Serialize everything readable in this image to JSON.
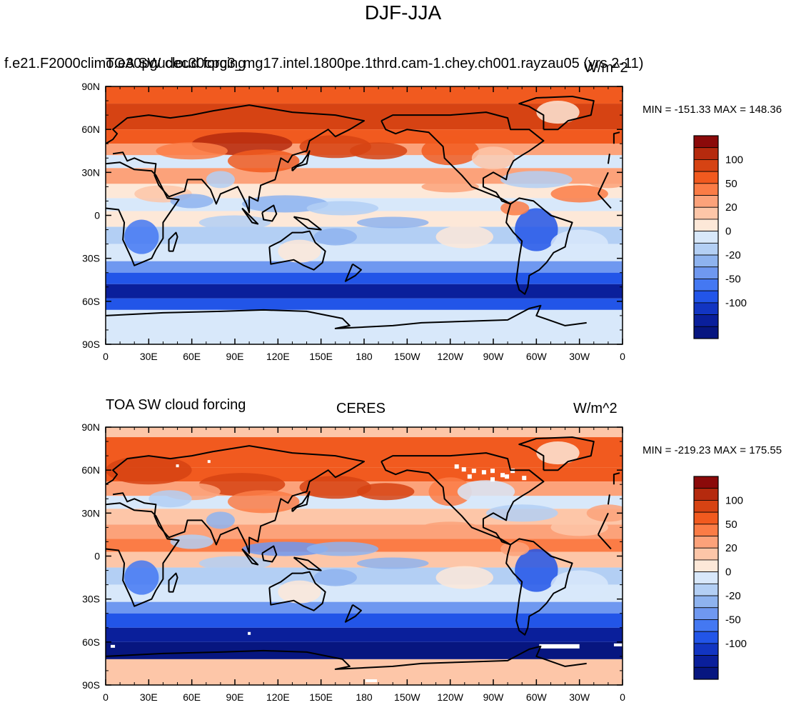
{
  "figure": {
    "title": "DJF-JJA"
  },
  "panels": [
    {
      "left_string": "f.e21.F2000climo.e30pgudec30cpg3_mg17.intel.1800pe.1thrd.cam-1.chey.ch001.rayzau05 (yrs 2-11)",
      "left_overlay": "TOA SW cloud forcing",
      "center_string": "",
      "right_string": "W/m^2",
      "stats": "MIN = -151.33 MAX = 148.36"
    },
    {
      "left_string": "TOA SW cloud forcing",
      "center_string": "CERES",
      "right_string": "W/m^2",
      "stats": "MIN = -219.23 MAX = 175.55"
    }
  ],
  "axes": {
    "lat_labels": [
      "90N",
      "60N",
      "30N",
      "0",
      "30S",
      "60S",
      "90S"
    ],
    "lon_labels": [
      "0",
      "30E",
      "60E",
      "90E",
      "120E",
      "150E",
      "180",
      "150W",
      "120W",
      "90W",
      "60W",
      "30W",
      "0"
    ]
  },
  "colorbar": {
    "labels": [
      "100",
      "50",
      "20",
      "0",
      "-20",
      "-50",
      "-100"
    ],
    "colors": [
      "#8b0a0a",
      "#b52a0e",
      "#d64313",
      "#f15a1f",
      "#fb7c46",
      "#fca27a",
      "#fdc6a8",
      "#fde8d8",
      "#d8e8fa",
      "#b3cff4",
      "#8eb3ef",
      "#6f98f0",
      "#4478f2",
      "#2255e8",
      "#1235c2",
      "#0a1f9b",
      "#071680"
    ]
  },
  "chart_data": [
    {
      "type": "heatmap",
      "title": "DJF-JJA",
      "subtitle": "TOA SW cloud forcing",
      "units": "W/m^2",
      "x_range": [
        0,
        360
      ],
      "y_range": [
        -90,
        90
      ],
      "x_ticks": [
        "0",
        "30E",
        "60E",
        "90E",
        "120E",
        "150E",
        "180",
        "150W",
        "120W",
        "90W",
        "60W",
        "30W",
        "0"
      ],
      "y_ticks": [
        "90N",
        "60N",
        "30N",
        "0",
        "30S",
        "60S",
        "90S"
      ],
      "min": -151.33,
      "max": 148.36,
      "levels": [
        -100,
        -50,
        -20,
        0,
        20,
        50,
        100
      ]
    },
    {
      "type": "heatmap",
      "title": "CERES",
      "subtitle": "TOA SW cloud forcing",
      "units": "W/m^2",
      "x_range": [
        0,
        360
      ],
      "y_range": [
        -90,
        90
      ],
      "x_ticks": [
        "0",
        "30E",
        "60E",
        "90E",
        "120E",
        "150E",
        "180",
        "150W",
        "120W",
        "90W",
        "60W",
        "30W",
        "0"
      ],
      "y_ticks": [
        "90N",
        "60N",
        "30N",
        "0",
        "30S",
        "60S",
        "90S"
      ],
      "min": -219.23,
      "max": 175.55,
      "levels": [
        -100,
        -50,
        -20,
        0,
        20,
        50,
        100
      ]
    }
  ]
}
